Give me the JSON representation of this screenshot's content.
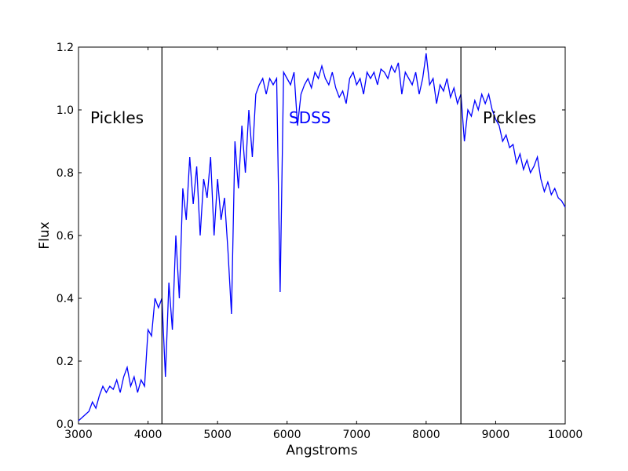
{
  "chart_data": {
    "type": "line",
    "xlabel": "Angstroms",
    "ylabel": "Flux",
    "color": "#0000ff",
    "x": [
      3000,
      3050,
      3100,
      3150,
      3200,
      3250,
      3300,
      3350,
      3400,
      3450,
      3500,
      3550,
      3600,
      3650,
      3700,
      3750,
      3800,
      3850,
      3900,
      3950,
      4000,
      4050,
      4100,
      4150,
      4200,
      4250,
      4300,
      4350,
      4400,
      4450,
      4500,
      4550,
      4600,
      4650,
      4700,
      4750,
      4800,
      4850,
      4900,
      4950,
      5000,
      5050,
      5100,
      5150,
      5200,
      5250,
      5300,
      5350,
      5400,
      5450,
      5500,
      5550,
      5600,
      5650,
      5700,
      5750,
      5800,
      5850,
      5900,
      5950,
      6000,
      6050,
      6100,
      6150,
      6200,
      6250,
      6300,
      6350,
      6400,
      6450,
      6500,
      6550,
      6600,
      6650,
      6700,
      6750,
      6800,
      6850,
      6900,
      6950,
      7000,
      7050,
      7100,
      7150,
      7200,
      7250,
      7300,
      7350,
      7400,
      7450,
      7500,
      7550,
      7600,
      7650,
      7700,
      7750,
      7800,
      7850,
      7900,
      7950,
      8000,
      8050,
      8100,
      8150,
      8200,
      8250,
      8300,
      8350,
      8400,
      8450,
      8500,
      8550,
      8600,
      8650,
      8700,
      8750,
      8800,
      8850,
      8900,
      8950,
      9000,
      9050,
      9100,
      9150,
      9200,
      9250,
      9300,
      9350,
      9400,
      9450,
      9500,
      9550,
      9600,
      9650,
      9700,
      9750,
      9800,
      9850,
      9900,
      9950,
      10000
    ],
    "values": [
      0.01,
      0.02,
      0.03,
      0.04,
      0.07,
      0.05,
      0.09,
      0.12,
      0.1,
      0.12,
      0.11,
      0.14,
      0.1,
      0.15,
      0.18,
      0.12,
      0.15,
      0.1,
      0.14,
      0.12,
      0.3,
      0.28,
      0.4,
      0.37,
      0.4,
      0.15,
      0.45,
      0.3,
      0.6,
      0.4,
      0.75,
      0.65,
      0.85,
      0.7,
      0.82,
      0.6,
      0.78,
      0.72,
      0.85,
      0.6,
      0.78,
      0.65,
      0.72,
      0.55,
      0.35,
      0.9,
      0.75,
      0.95,
      0.8,
      1.0,
      0.85,
      1.05,
      1.08,
      1.1,
      1.05,
      1.1,
      1.08,
      1.1,
      0.42,
      1.12,
      1.1,
      1.08,
      1.12,
      0.95,
      1.05,
      1.08,
      1.1,
      1.07,
      1.12,
      1.1,
      1.14,
      1.1,
      1.08,
      1.12,
      1.07,
      1.04,
      1.06,
      1.02,
      1.1,
      1.12,
      1.08,
      1.1,
      1.05,
      1.12,
      1.1,
      1.12,
      1.08,
      1.13,
      1.12,
      1.1,
      1.14,
      1.12,
      1.15,
      1.05,
      1.12,
      1.1,
      1.08,
      1.12,
      1.05,
      1.1,
      1.18,
      1.08,
      1.1,
      1.02,
      1.08,
      1.06,
      1.1,
      1.04,
      1.07,
      1.02,
      1.05,
      0.9,
      1.0,
      0.98,
      1.03,
      1.0,
      1.05,
      1.02,
      1.05,
      1.0,
      0.97,
      0.95,
      0.9,
      0.92,
      0.88,
      0.89,
      0.83,
      0.86,
      0.81,
      0.84,
      0.8,
      0.82,
      0.85,
      0.78,
      0.74,
      0.77,
      0.73,
      0.75,
      0.72,
      0.71,
      0.69
    ],
    "vlines": [
      4200,
      8500
    ],
    "annotations": [
      {
        "text": "Pickles",
        "color": "#000000"
      },
      {
        "text": "SDSS",
        "color": "#0000ff"
      },
      {
        "text": "Pickles",
        "color": "#000000"
      }
    ],
    "xlim": [
      3000,
      10000
    ],
    "ylim": [
      0,
      1.2
    ],
    "xticks": [
      3000,
      4000,
      5000,
      6000,
      7000,
      8000,
      9000,
      10000
    ],
    "yticks": [
      {
        "value": 0,
        "label": "0.0"
      },
      0.2,
      0.4,
      0.6,
      0.8,
      {
        "value": 1,
        "label": "1.0"
      },
      1.2
    ]
  }
}
